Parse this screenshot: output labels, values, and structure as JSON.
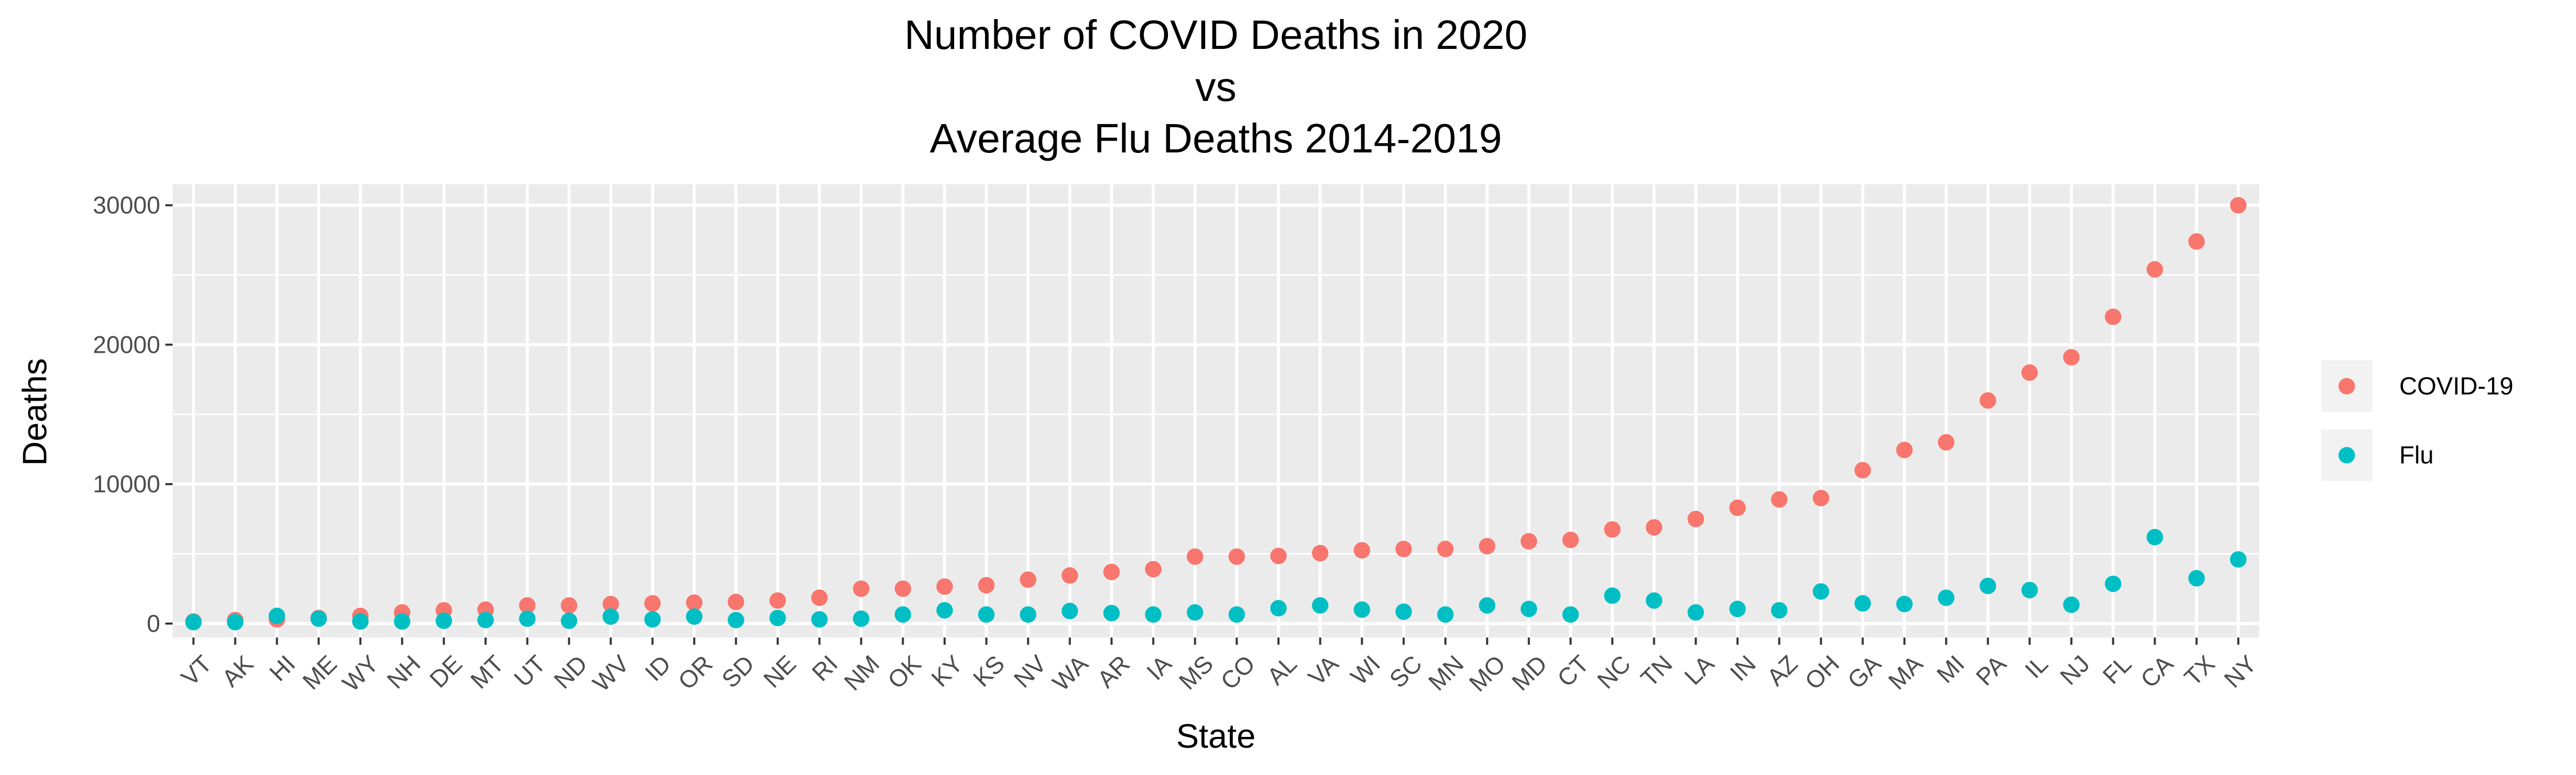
{
  "chart_data": {
    "type": "scatter",
    "title_lines": [
      "Number of COVID Deaths in 2020",
      "vs",
      "Average Flu Deaths 2014-2019"
    ],
    "xlabel": "State",
    "ylabel": "Deaths",
    "ylim": [
      -1000,
      31500
    ],
    "yticks": [
      0,
      10000,
      20000,
      30000
    ],
    "grid": true,
    "legend_position": "right",
    "categories": [
      "VT",
      "AK",
      "HI",
      "ME",
      "WY",
      "NH",
      "DE",
      "MT",
      "UT",
      "ND",
      "WV",
      "ID",
      "OR",
      "SD",
      "NE",
      "RI",
      "NM",
      "OK",
      "KY",
      "KS",
      "NV",
      "WA",
      "AR",
      "IA",
      "MS",
      "CO",
      "AL",
      "VA",
      "WI",
      "SC",
      "MN",
      "MO",
      "MD",
      "CT",
      "NC",
      "TN",
      "LA",
      "IN",
      "AZ",
      "OH",
      "GA",
      "MA",
      "MI",
      "PA",
      "IL",
      "NJ",
      "FL",
      "CA",
      "TX",
      "NY"
    ],
    "series": [
      {
        "name": "COVID-19",
        "color": "#F8766D",
        "values": [
          150,
          250,
          300,
          400,
          550,
          800,
          950,
          1000,
          1300,
          1300,
          1400,
          1450,
          1500,
          1550,
          1650,
          1850,
          2500,
          2500,
          2650,
          2750,
          3150,
          3450,
          3700,
          3900,
          4800,
          4800,
          4850,
          5050,
          5250,
          5350,
          5350,
          5550,
          5900,
          6000,
          6750,
          6900,
          7500,
          8300,
          8900,
          9000,
          11000,
          12450,
          13000,
          16000,
          18000,
          19100,
          22000,
          25400,
          27400,
          30000
        ]
      },
      {
        "name": "Flu",
        "color": "#00BFC4",
        "values": [
          100,
          100,
          550,
          350,
          150,
          150,
          200,
          250,
          350,
          200,
          500,
          300,
          500,
          250,
          400,
          300,
          350,
          650,
          950,
          650,
          650,
          900,
          750,
          650,
          800,
          650,
          1100,
          1300,
          1000,
          850,
          650,
          1300,
          1050,
          650,
          2000,
          1650,
          800,
          1050,
          950,
          2300,
          1450,
          1400,
          1850,
          2700,
          2400,
          1350,
          2850,
          6200,
          3250,
          4600
        ]
      }
    ]
  }
}
